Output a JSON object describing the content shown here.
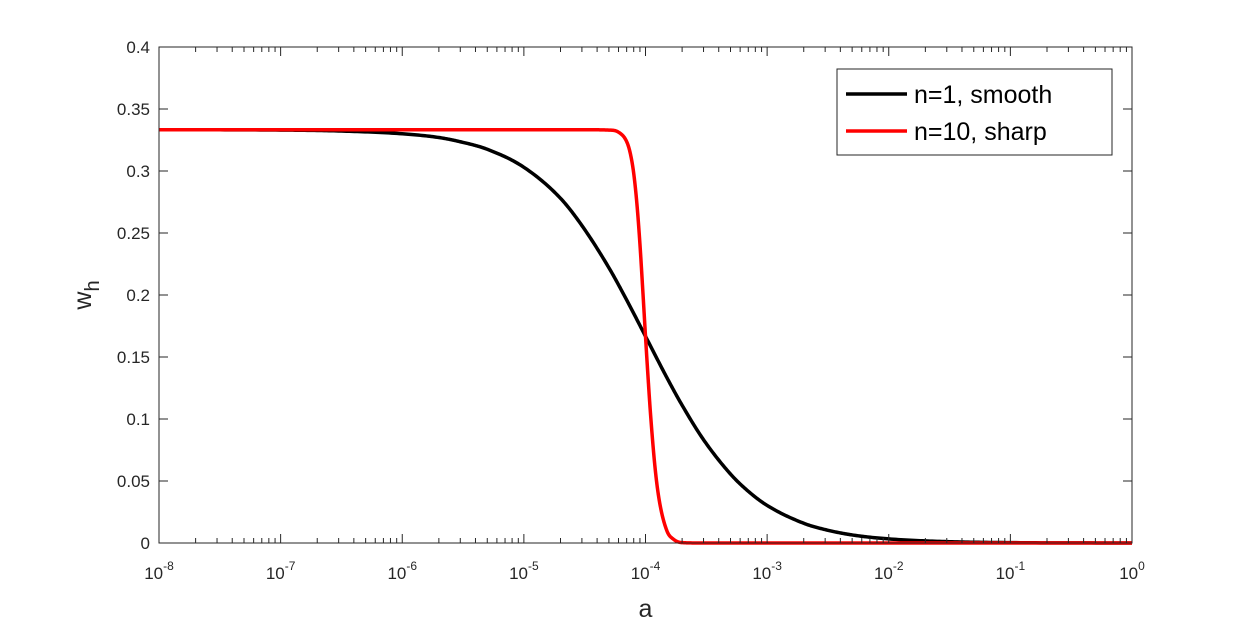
{
  "chart_data": {
    "type": "line",
    "title": "",
    "xlabel": "a",
    "ylabel_main": "w",
    "ylabel_sub": "h",
    "xscale": "log",
    "xlim": [
      1e-08,
      1
    ],
    "ylim": [
      0,
      0.4
    ],
    "grid": false,
    "legend_position": "top-right",
    "x_ticks": [
      {
        "value": 1e-08,
        "base": "10",
        "exp": "-8"
      },
      {
        "value": 1e-07,
        "base": "10",
        "exp": "-7"
      },
      {
        "value": 1e-06,
        "base": "10",
        "exp": "-6"
      },
      {
        "value": 1e-05,
        "base": "10",
        "exp": "-5"
      },
      {
        "value": 0.0001,
        "base": "10",
        "exp": "-4"
      },
      {
        "value": 0.001,
        "base": "10",
        "exp": "-3"
      },
      {
        "value": 0.01,
        "base": "10",
        "exp": "-2"
      },
      {
        "value": 0.1,
        "base": "10",
        "exp": "-1"
      },
      {
        "value": 1,
        "base": "10",
        "exp": "0"
      }
    ],
    "y_ticks": [
      {
        "value": 0,
        "label": "0"
      },
      {
        "value": 0.05,
        "label": "0.05"
      },
      {
        "value": 0.1,
        "label": "0.1"
      },
      {
        "value": 0.15,
        "label": "0.15"
      },
      {
        "value": 0.2,
        "label": "0.2"
      },
      {
        "value": 0.25,
        "label": "0.25"
      },
      {
        "value": 0.3,
        "label": "0.3"
      },
      {
        "value": 0.35,
        "label": "0.35"
      },
      {
        "value": 0.4,
        "label": "0.4"
      }
    ],
    "series": [
      {
        "name": "n=1, smooth",
        "color": "#000000",
        "x": [
          1e-08,
          1e-07,
          3e-07,
          1e-06,
          2e-06,
          3e-06,
          5e-06,
          1e-05,
          2e-05,
          3e-05,
          5e-05,
          7e-05,
          0.0001,
          0.00015,
          0.0002,
          0.0003,
          0.0005,
          0.0007,
          0.001,
          0.002,
          0.003,
          0.005,
          0.01,
          0.03,
          0.1,
          1
        ],
        "y": [
          0.3333,
          0.333,
          0.3323,
          0.33,
          0.327,
          0.3236,
          0.3175,
          0.303,
          0.278,
          0.256,
          0.222,
          0.196,
          0.1667,
          0.1333,
          0.1111,
          0.0833,
          0.0556,
          0.0417,
          0.0303,
          0.0159,
          0.0108,
          0.0065,
          0.0033,
          0.0011,
          0.0003,
          0.0
        ]
      },
      {
        "name": "n=10, sharp",
        "color": "#ff0000",
        "x": [
          1e-08,
          1e-06,
          3e-05,
          5e-05,
          6e-05,
          7e-05,
          7.5e-05,
          8e-05,
          8.5e-05,
          9e-05,
          9.5e-05,
          0.0001,
          0.000105,
          0.00011,
          0.00012,
          0.00013,
          0.00015,
          0.00017,
          0.0002,
          0.0003,
          0.001,
          1
        ],
        "y": [
          0.3333,
          0.3333,
          0.3333,
          0.333,
          0.3313,
          0.3237,
          0.3142,
          0.2981,
          0.2734,
          0.2411,
          0.2037,
          0.1667,
          0.1333,
          0.1039,
          0.0601,
          0.0339,
          0.0098,
          0.003,
          0.0003,
          0.0,
          0.0,
          0.0
        ]
      }
    ]
  }
}
